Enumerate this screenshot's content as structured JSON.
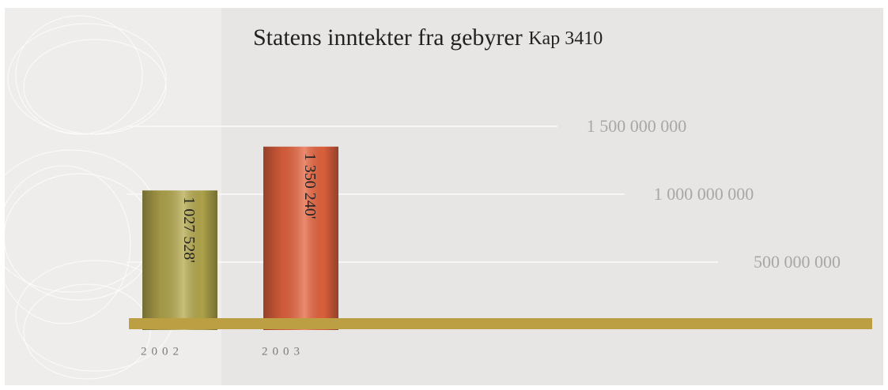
{
  "chart_data": {
    "type": "bar",
    "title": "Statens inntekter fra gebyrer",
    "subtitle": "Kap 3410",
    "categories": [
      "2002",
      "2003"
    ],
    "values": [
      1027528000,
      1350240000
    ],
    "value_labels": [
      "1 027 528'",
      "1 350 240'"
    ],
    "colors": [
      "#b5a94e",
      "#e5643f"
    ],
    "baseline_color": "#bb9f42",
    "ylim": [
      0,
      1500000000
    ],
    "yticks": [
      {
        "value": 500000000,
        "label": "500 000 000"
      },
      {
        "value": 1000000000,
        "label": "1 000 000 000"
      },
      {
        "value": 1500000000,
        "label": "1 500 000 000"
      }
    ],
    "grid": true
  }
}
